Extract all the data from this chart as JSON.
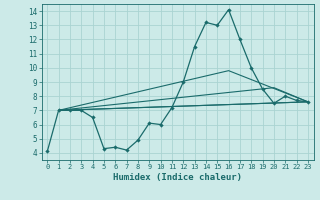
{
  "xlabel": "Humidex (Indice chaleur)",
  "background_color": "#cceae8",
  "grid_color": "#aad4d2",
  "line_color": "#1a6b6b",
  "xlim": [
    -0.5,
    23.5
  ],
  "ylim": [
    3.5,
    14.5
  ],
  "xticks": [
    0,
    1,
    2,
    3,
    4,
    5,
    6,
    7,
    8,
    9,
    10,
    11,
    12,
    13,
    14,
    15,
    16,
    17,
    18,
    19,
    20,
    21,
    22,
    23
  ],
  "yticks": [
    4,
    5,
    6,
    7,
    8,
    9,
    10,
    11,
    12,
    13,
    14
  ],
  "main_line": {
    "x": [
      0,
      1,
      2,
      3,
      4,
      5,
      6,
      7,
      8,
      9,
      10,
      11,
      12,
      13,
      14,
      15,
      16,
      17,
      18,
      19,
      20,
      21,
      22,
      23
    ],
    "y": [
      4.1,
      7.0,
      7.0,
      7.0,
      6.5,
      4.3,
      4.4,
      4.2,
      4.9,
      6.1,
      6.0,
      7.2,
      9.0,
      11.5,
      13.2,
      13.0,
      14.1,
      12.0,
      10.0,
      8.5,
      7.5,
      8.0,
      7.7,
      7.6
    ]
  },
  "trend_lines": [
    {
      "x": [
        1,
        23
      ],
      "y": [
        7.0,
        7.6
      ]
    },
    {
      "x": [
        1,
        23
      ],
      "y": [
        7.0,
        7.6
      ]
    },
    {
      "x": [
        1,
        20,
        23
      ],
      "y": [
        7.0,
        8.6,
        7.6
      ]
    },
    {
      "x": [
        1,
        16,
        23
      ],
      "y": [
        7.0,
        9.8,
        7.6
      ]
    }
  ]
}
